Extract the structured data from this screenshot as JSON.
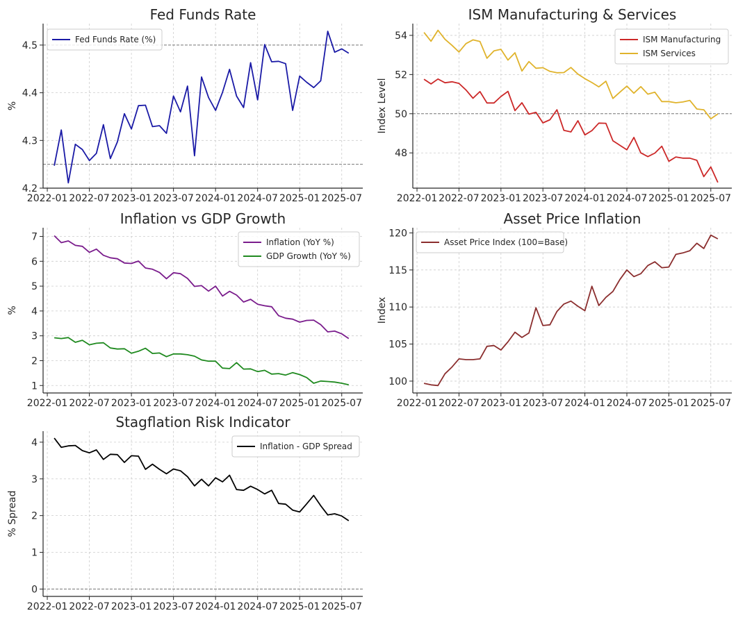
{
  "chart_data": [
    {
      "type": "line",
      "title": "Fed Funds Rate",
      "xlabel": "",
      "ylabel": "%",
      "ylim": [
        4.2,
        4.545
      ],
      "yticks": [
        4.2,
        4.3,
        4.4,
        4.5
      ],
      "ytick_labels": [
        "4.2",
        "4.3",
        "4.4",
        "4.5"
      ],
      "xticks": [
        "2022-01",
        "2022-07",
        "2023-01",
        "2023-07",
        "2024-01",
        "2024-07",
        "2025-01",
        "2025-07"
      ],
      "grid": true,
      "legend": "top-left",
      "reference_lines": [
        4.25,
        4.5
      ],
      "x": [
        "2022-02",
        "2022-03",
        "2022-04",
        "2022-05",
        "2022-06",
        "2022-07",
        "2022-08",
        "2022-09",
        "2022-10",
        "2022-11",
        "2022-12",
        "2023-01",
        "2023-02",
        "2023-03",
        "2023-04",
        "2023-05",
        "2023-06",
        "2023-07",
        "2023-08",
        "2023-09",
        "2023-10",
        "2023-11",
        "2023-12",
        "2024-01",
        "2024-02",
        "2024-03",
        "2024-04",
        "2024-05",
        "2024-06",
        "2024-07",
        "2024-08",
        "2024-09",
        "2024-10",
        "2024-11",
        "2024-12",
        "2025-01",
        "2025-02",
        "2025-03",
        "2025-04",
        "2025-05",
        "2025-06",
        "2025-07",
        "2025-08"
      ],
      "series": [
        {
          "name": "Fed Funds Rate (%)",
          "color": "#1a1aa6",
          "values": [
            4.247,
            4.322,
            4.211,
            4.292,
            4.281,
            4.258,
            4.273,
            4.333,
            4.262,
            4.297,
            4.356,
            4.324,
            4.373,
            4.374,
            4.329,
            4.331,
            4.315,
            4.393,
            4.36,
            4.414,
            4.268,
            4.433,
            4.39,
            4.363,
            4.401,
            4.449,
            4.393,
            4.369,
            4.463,
            4.385,
            4.501,
            4.465,
            4.466,
            4.461,
            4.363,
            4.435,
            4.422,
            4.411,
            4.425,
            4.529,
            4.485,
            4.492,
            4.483
          ]
        }
      ]
    },
    {
      "type": "line",
      "title": "ISM Manufacturing & Services",
      "xlabel": "",
      "ylabel": "Index Level",
      "ylim": [
        46.2,
        54.6
      ],
      "yticks": [
        48,
        50,
        52,
        54
      ],
      "ytick_labels": [
        "48",
        "50",
        "52",
        "54"
      ],
      "xticks": [
        "2022-01",
        "2022-07",
        "2023-01",
        "2023-07",
        "2024-01",
        "2024-07",
        "2025-01",
        "2025-07"
      ],
      "grid": true,
      "legend": "top-right",
      "reference_lines": [
        50
      ],
      "x": [
        "2022-02",
        "2022-03",
        "2022-04",
        "2022-05",
        "2022-06",
        "2022-07",
        "2022-08",
        "2022-09",
        "2022-10",
        "2022-11",
        "2022-12",
        "2023-01",
        "2023-02",
        "2023-03",
        "2023-04",
        "2023-05",
        "2023-06",
        "2023-07",
        "2023-08",
        "2023-09",
        "2023-10",
        "2023-11",
        "2023-12",
        "2024-01",
        "2024-02",
        "2024-03",
        "2024-04",
        "2024-05",
        "2024-06",
        "2024-07",
        "2024-08",
        "2024-09",
        "2024-10",
        "2024-11",
        "2024-12",
        "2025-01",
        "2025-02",
        "2025-03",
        "2025-04",
        "2025-05",
        "2025-06",
        "2025-07",
        "2025-08"
      ],
      "series": [
        {
          "name": "ISM Manufacturing",
          "color": "#cc2828",
          "values": [
            51.76,
            51.52,
            51.77,
            51.58,
            51.63,
            51.55,
            51.21,
            50.79,
            51.13,
            50.55,
            50.55,
            50.88,
            51.14,
            50.16,
            50.56,
            49.98,
            50.07,
            49.53,
            49.69,
            50.2,
            49.15,
            49.07,
            49.64,
            48.92,
            49.14,
            49.52,
            49.51,
            48.62,
            48.39,
            48.16,
            48.79,
            48.0,
            47.81,
            47.99,
            48.34,
            47.57,
            47.79,
            47.73,
            47.73,
            47.62,
            46.79,
            47.28,
            46.49
          ]
        },
        {
          "name": "ISM Services",
          "color": "#e0b32c",
          "values": [
            54.15,
            53.7,
            54.26,
            53.8,
            53.49,
            53.15,
            53.58,
            53.77,
            53.69,
            52.83,
            53.21,
            53.29,
            52.74,
            53.11,
            52.18,
            52.66,
            52.32,
            52.35,
            52.16,
            52.09,
            52.1,
            52.36,
            52.02,
            51.79,
            51.59,
            51.37,
            51.66,
            50.78,
            51.1,
            51.41,
            51.05,
            51.38,
            51.0,
            51.1,
            50.62,
            50.62,
            50.56,
            50.6,
            50.68,
            50.24,
            50.2,
            49.74,
            49.99
          ]
        }
      ]
    },
    {
      "type": "line",
      "title": "Inflation vs GDP Growth",
      "xlabel": "",
      "ylabel": "%",
      "ylim": [
        0.7,
        7.35
      ],
      "yticks": [
        1,
        2,
        3,
        4,
        5,
        6,
        7
      ],
      "ytick_labels": [
        "1",
        "2",
        "3",
        "4",
        "5",
        "6",
        "7"
      ],
      "xticks": [
        "2022-01",
        "2022-07",
        "2023-01",
        "2023-07",
        "2024-01",
        "2024-07",
        "2025-01",
        "2025-07"
      ],
      "grid": true,
      "legend": "top-right",
      "reference_lines": [],
      "x": [
        "2022-02",
        "2022-03",
        "2022-04",
        "2022-05",
        "2022-06",
        "2022-07",
        "2022-08",
        "2022-09",
        "2022-10",
        "2022-11",
        "2022-12",
        "2023-01",
        "2023-02",
        "2023-03",
        "2023-04",
        "2023-05",
        "2023-06",
        "2023-07",
        "2023-08",
        "2023-09",
        "2023-10",
        "2023-11",
        "2023-12",
        "2024-01",
        "2024-02",
        "2024-03",
        "2024-04",
        "2024-05",
        "2024-06",
        "2024-07",
        "2024-08",
        "2024-09",
        "2024-10",
        "2024-11",
        "2024-12",
        "2025-01",
        "2025-02",
        "2025-03",
        "2025-04",
        "2025-05",
        "2025-06",
        "2025-07",
        "2025-08"
      ],
      "series": [
        {
          "name": "Inflation (YoY %)",
          "color": "#7a1c8c",
          "values": [
            7.03,
            6.75,
            6.82,
            6.64,
            6.6,
            6.36,
            6.49,
            6.24,
            6.14,
            6.1,
            5.93,
            5.91,
            6.01,
            5.73,
            5.68,
            5.55,
            5.3,
            5.54,
            5.5,
            5.31,
            4.99,
            5.02,
            4.8,
            5.0,
            4.6,
            4.79,
            4.64,
            4.36,
            4.47,
            4.27,
            4.21,
            4.17,
            3.81,
            3.71,
            3.67,
            3.55,
            3.62,
            3.63,
            3.45,
            3.16,
            3.19,
            3.08,
            2.89
          ]
        },
        {
          "name": "GDP Growth (YoY %)",
          "color": "#1f8a1f",
          "values": [
            2.92,
            2.89,
            2.93,
            2.74,
            2.82,
            2.64,
            2.7,
            2.72,
            2.51,
            2.47,
            2.48,
            2.3,
            2.38,
            2.5,
            2.29,
            2.31,
            2.16,
            2.27,
            2.27,
            2.24,
            2.18,
            2.03,
            1.98,
            1.98,
            1.7,
            1.68,
            1.92,
            1.66,
            1.67,
            1.56,
            1.61,
            1.46,
            1.48,
            1.42,
            1.52,
            1.44,
            1.32,
            1.09,
            1.18,
            1.16,
            1.14,
            1.09,
            1.03
          ]
        }
      ]
    },
    {
      "type": "line",
      "title": "Asset Price Inflation",
      "xlabel": "",
      "ylabel": "Index",
      "ylim": [
        98.4,
        120.7
      ],
      "yticks": [
        100,
        105,
        110,
        115,
        120
      ],
      "ytick_labels": [
        "100",
        "105",
        "110",
        "115",
        "120"
      ],
      "xticks": [
        "2022-01",
        "2022-07",
        "2023-01",
        "2023-07",
        "2024-01",
        "2024-07",
        "2025-01",
        "2025-07"
      ],
      "grid": true,
      "legend": "top-left",
      "reference_lines": [],
      "x": [
        "2022-02",
        "2022-03",
        "2022-04",
        "2022-05",
        "2022-06",
        "2022-07",
        "2022-08",
        "2022-09",
        "2022-10",
        "2022-11",
        "2022-12",
        "2023-01",
        "2023-02",
        "2023-03",
        "2023-04",
        "2023-05",
        "2023-06",
        "2023-07",
        "2023-08",
        "2023-09",
        "2023-10",
        "2023-11",
        "2023-12",
        "2024-01",
        "2024-02",
        "2024-03",
        "2024-04",
        "2024-05",
        "2024-06",
        "2024-07",
        "2024-08",
        "2024-09",
        "2024-10",
        "2024-11",
        "2024-12",
        "2025-01",
        "2025-02",
        "2025-03",
        "2025-04",
        "2025-05",
        "2025-06",
        "2025-07",
        "2025-08"
      ],
      "series": [
        {
          "name": "Asset Price Index (100=Base)",
          "color": "#8b2e2e",
          "values": [
            99.7,
            99.5,
            99.4,
            101.0,
            101.9,
            103.0,
            102.9,
            102.9,
            103.0,
            104.7,
            104.8,
            104.2,
            105.3,
            106.6,
            105.9,
            106.5,
            109.9,
            107.5,
            107.6,
            109.4,
            110.4,
            110.8,
            110.1,
            109.5,
            112.8,
            110.2,
            111.3,
            112.1,
            113.7,
            115.0,
            114.1,
            114.5,
            115.6,
            116.1,
            115.3,
            115.4,
            117.1,
            117.3,
            117.6,
            118.6,
            117.9,
            119.7,
            119.2
          ]
        }
      ]
    },
    {
      "type": "line",
      "title": "Stagflation Risk Indicator",
      "xlabel": "",
      "ylabel": "% Spread",
      "ylim": [
        -0.2,
        4.3
      ],
      "yticks": [
        0,
        1,
        2,
        3,
        4
      ],
      "ytick_labels": [
        "0",
        "1",
        "2",
        "3",
        "4"
      ],
      "xticks": [
        "2022-01",
        "2022-07",
        "2023-01",
        "2023-07",
        "2024-01",
        "2024-07",
        "2025-01",
        "2025-07"
      ],
      "grid": true,
      "legend": "top-right",
      "reference_lines": [
        0
      ],
      "x": [
        "2022-02",
        "2022-03",
        "2022-04",
        "2022-05",
        "2022-06",
        "2022-07",
        "2022-08",
        "2022-09",
        "2022-10",
        "2022-11",
        "2022-12",
        "2023-01",
        "2023-02",
        "2023-03",
        "2023-04",
        "2023-05",
        "2023-06",
        "2023-07",
        "2023-08",
        "2023-09",
        "2023-10",
        "2023-11",
        "2023-12",
        "2024-01",
        "2024-02",
        "2024-03",
        "2024-04",
        "2024-05",
        "2024-06",
        "2024-07",
        "2024-08",
        "2024-09",
        "2024-10",
        "2024-11",
        "2024-12",
        "2025-01",
        "2025-02",
        "2025-03",
        "2025-04",
        "2025-05",
        "2025-06",
        "2025-07",
        "2025-08"
      ],
      "series": [
        {
          "name": "Inflation - GDP Spread",
          "color": "#000000",
          "values": [
            4.11,
            3.86,
            3.9,
            3.91,
            3.77,
            3.71,
            3.79,
            3.53,
            3.67,
            3.66,
            3.45,
            3.63,
            3.62,
            3.26,
            3.4,
            3.26,
            3.14,
            3.27,
            3.22,
            3.06,
            2.81,
            2.99,
            2.81,
            3.03,
            2.92,
            3.1,
            2.71,
            2.69,
            2.8,
            2.71,
            2.59,
            2.69,
            2.33,
            2.31,
            2.15,
            2.1,
            2.32,
            2.55,
            2.27,
            2.02,
            2.05,
            1.99,
            1.86
          ]
        }
      ]
    }
  ]
}
